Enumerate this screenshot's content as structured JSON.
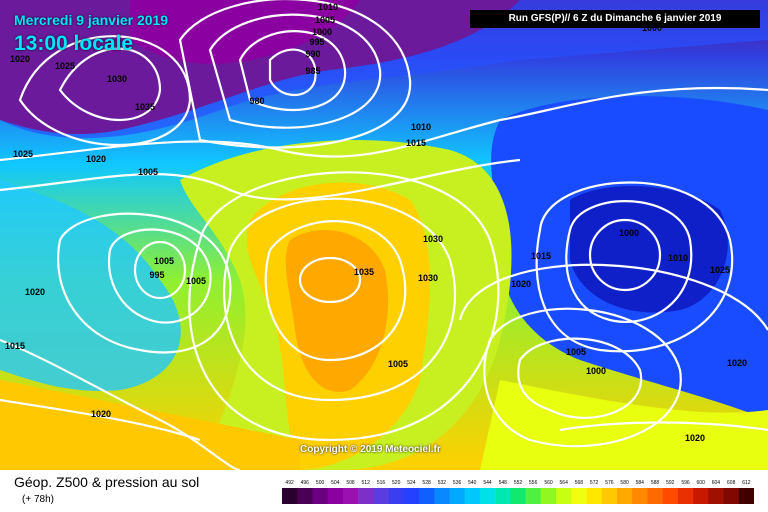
{
  "header": {
    "date": "Mercredi 9 janvier 2019",
    "time": "13:00 locale",
    "run": "Run GFS(P)// 6 Z du Dimanche 6 janvier 2019"
  },
  "copyright": "Copyright © 2019 Meteociel.fr",
  "footer": {
    "title": "Géop. Z500 & pression au sol",
    "subtitle": "(+ 78h)"
  },
  "scale": {
    "ticks": [
      "492",
      "496",
      "500",
      "504",
      "508",
      "512",
      "516",
      "520",
      "524",
      "528",
      "532",
      "536",
      "540",
      "544",
      "548",
      "552",
      "556",
      "560",
      "564",
      "568",
      "572",
      "576",
      "580",
      "584",
      "588",
      "592",
      "596",
      "600",
      "604",
      "608",
      "612"
    ],
    "colors": [
      "#2b0030",
      "#4a0055",
      "#6a0080",
      "#8a00a0",
      "#9a10b0",
      "#7d2fc8",
      "#5a3ce0",
      "#3a3ef0",
      "#2540ff",
      "#1060ff",
      "#0a88ff",
      "#00aaff",
      "#00c8ff",
      "#00e0e8",
      "#00e8b0",
      "#10e870",
      "#50f040",
      "#90f820",
      "#c8ff10",
      "#f0ff10",
      "#ffe800",
      "#ffc800",
      "#ffa800",
      "#ff8800",
      "#ff6a00",
      "#ff4a00",
      "#e83000",
      "#c81800",
      "#a01000",
      "#800800",
      "#400000"
    ]
  },
  "pressure_labels": [
    "1010",
    "1005",
    "1000",
    "995",
    "990",
    "985",
    "980",
    "1025",
    "1030",
    "1035",
    "1020",
    "1025",
    "1020",
    "1005",
    "1010",
    "1015",
    "1000",
    "995",
    "1005",
    "1020",
    "1035",
    "1030",
    "1030",
    "1015",
    "1020",
    "1015",
    "1000",
    "1005",
    "1010",
    "1025",
    "1005",
    "1000",
    "1020",
    "1020",
    "1020",
    "1005"
  ]
}
